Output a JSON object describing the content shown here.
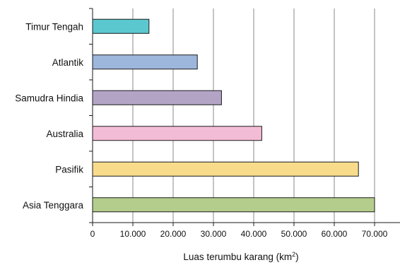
{
  "chart_data": {
    "type": "bar",
    "orientation": "horizontal",
    "categories": [
      "Timur Tengah",
      "Atlantik",
      "Samudra Hindia",
      "Australia",
      "Pasifik",
      "Asia Tenggara"
    ],
    "values": [
      14000,
      26000,
      32000,
      42000,
      66000,
      70000
    ],
    "colors": [
      "#5bc8cf",
      "#9db6dc",
      "#b3a4c6",
      "#f3bcd6",
      "#f8dc8c",
      "#b5cd8c"
    ],
    "xlabel": {
      "main": "Luas terumbu karang (km",
      "sup": "2",
      "end": ")"
    },
    "xlim": [
      0,
      80000
    ],
    "xticks": [
      0,
      10000,
      20000,
      30000,
      40000,
      50000,
      60000,
      70000
    ],
    "xtick_labels": [
      "0",
      "10.000",
      "20.000",
      "30.000",
      "40.000",
      "50.000",
      "60.000",
      "70.000"
    ],
    "grid": "vertical"
  }
}
